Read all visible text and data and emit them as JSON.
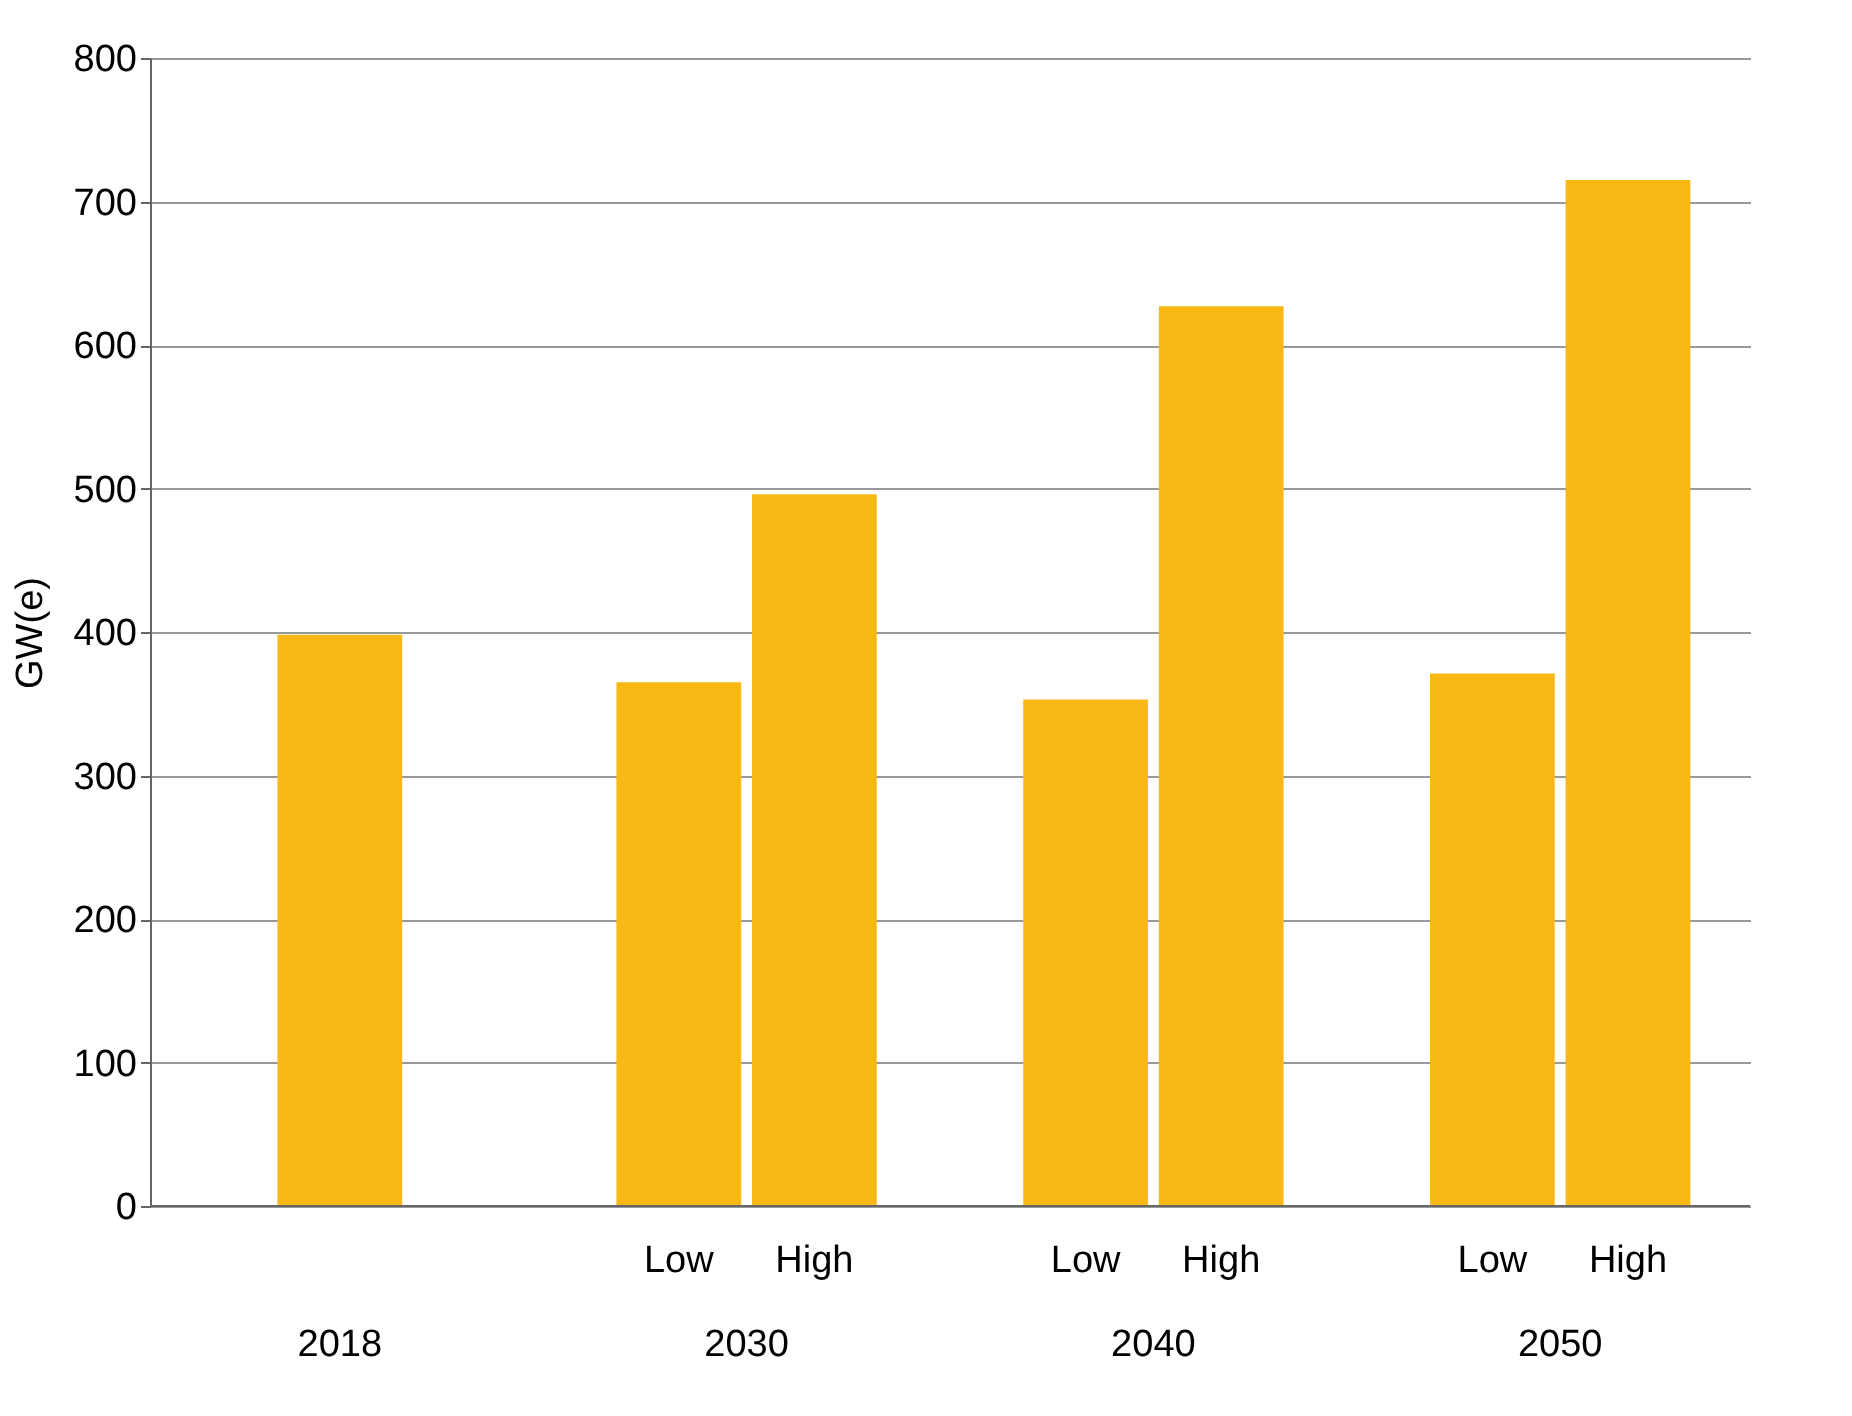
{
  "chart_data": {
    "type": "bar",
    "ylabel": "GW(e)",
    "categories": [
      "2018",
      "2030",
      "2040",
      "2050"
    ],
    "series": [
      {
        "color": "#f9b814",
        "values": [
          398,
          null,
          null,
          null
        ]
      },
      {
        "name": "Low",
        "color": "#f9b814",
        "values": [
          null,
          365,
          353,
          371
        ]
      },
      {
        "name": "High",
        "color": "#f9b814",
        "values": [
          null,
          496,
          627,
          715
        ]
      }
    ],
    "ylim": [
      0,
      800
    ],
    "yticks": [
      0,
      100,
      200,
      300,
      400,
      500,
      600,
      700,
      800
    ],
    "grid": "y",
    "legend": false
  }
}
